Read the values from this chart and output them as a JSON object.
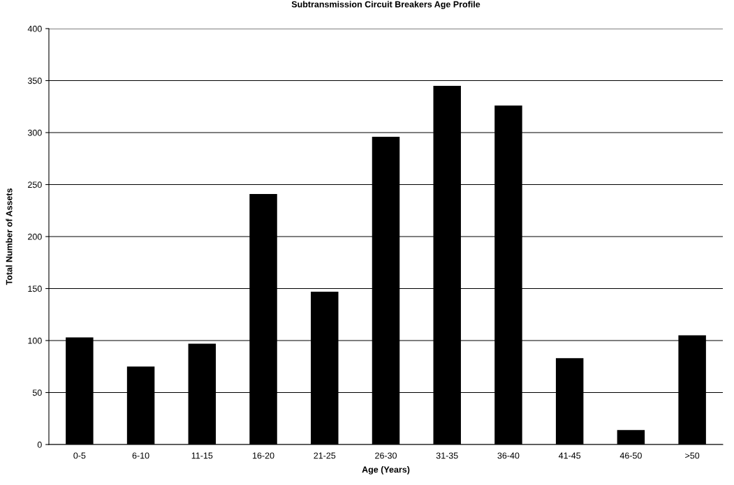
{
  "chart_data": {
    "type": "bar",
    "title": "Subtransmission Circuit Breakers Age Profile",
    "xlabel": "Age (Years)",
    "ylabel": "Total Number of Assets",
    "categories": [
      "0-5",
      "6-10",
      "11-15",
      "16-20",
      "21-25",
      "26-30",
      "31-35",
      "36-40",
      "41-45",
      "46-50",
      ">50"
    ],
    "values": [
      103,
      75,
      97,
      241,
      147,
      296,
      345,
      326,
      83,
      14,
      105
    ],
    "color": "#000000",
    "ylim": [
      0,
      400
    ],
    "yticks": [
      0,
      50,
      100,
      150,
      200,
      250,
      300,
      350,
      400
    ],
    "grid": "y",
    "legend": false
  }
}
